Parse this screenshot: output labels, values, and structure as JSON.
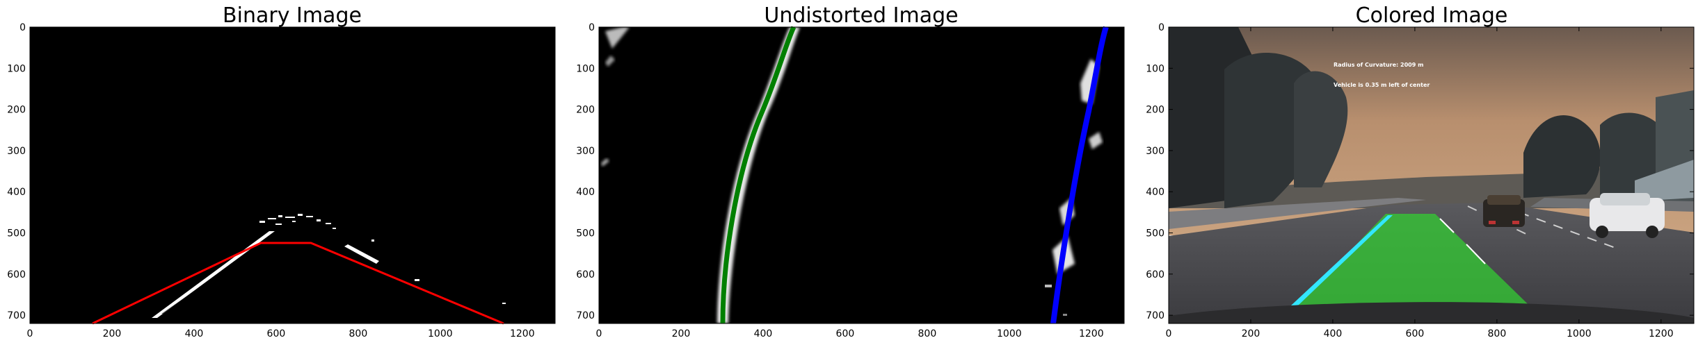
{
  "panels": [
    {
      "id": "binary",
      "title": "Binary Image",
      "x_ticks": [
        "0",
        "200",
        "400",
        "600",
        "800",
        "1000",
        "1200"
      ],
      "y_ticks": [
        "0",
        "100",
        "200",
        "300",
        "400",
        "500",
        "600",
        "700"
      ],
      "overlay_color": "#ff0000"
    },
    {
      "id": "undistorted",
      "title": "Undistorted Image",
      "x_ticks": [
        "0",
        "200",
        "400",
        "600",
        "800",
        "1000",
        "1200"
      ],
      "y_ticks": [
        "0",
        "100",
        "200",
        "300",
        "400",
        "500",
        "600",
        "700"
      ],
      "left_fit_color": "#008000",
      "right_fit_color": "#0000ff"
    },
    {
      "id": "colored",
      "title": "Colored Image",
      "x_ticks": [
        "0",
        "200",
        "400",
        "600",
        "800",
        "1000",
        "1200"
      ],
      "y_ticks": [
        "0",
        "100",
        "200",
        "300",
        "400",
        "500",
        "600",
        "700"
      ],
      "annotations": [
        "Radius of Curvature: 2009 m",
        "Vehicle is 0.35 m left of center"
      ],
      "lane_color": "#33cc33"
    }
  ]
}
